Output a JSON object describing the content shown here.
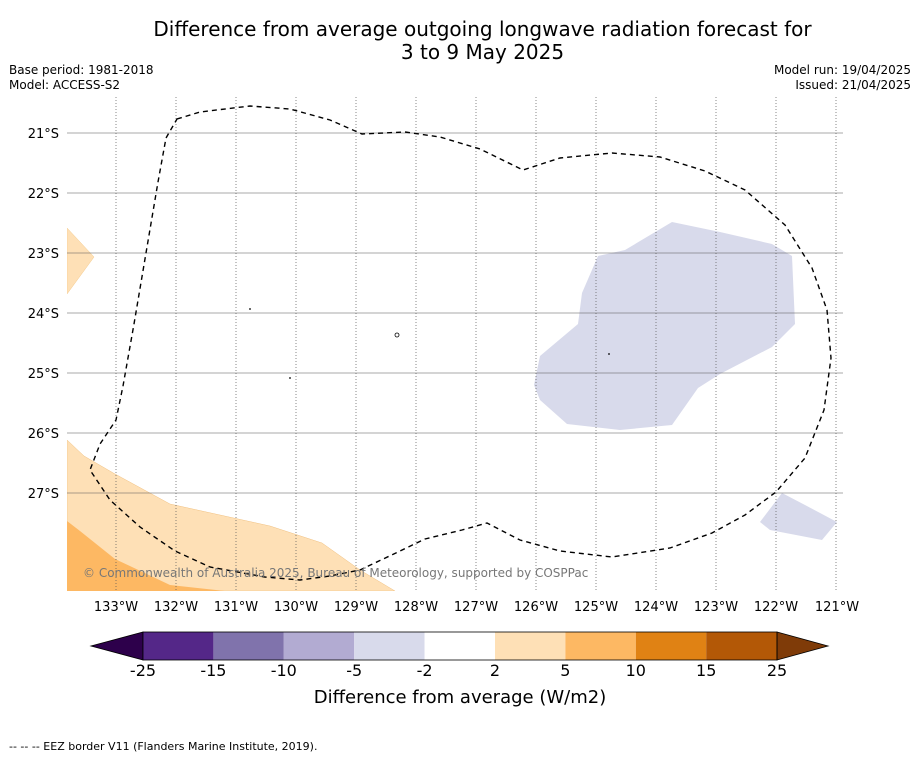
{
  "title_line1": "Difference from average outgoing longwave radiation forecast for",
  "title_line2": "3 to 9 May 2025",
  "base_period": "Base period: 1981-2018",
  "model": "Model: ACCESS-S2",
  "model_run": "Model run: 19/04/2025",
  "issued": "Issued: 21/04/2025",
  "copyright": "© Commonwealth of Australia 2025, Bureau of Meteorology, supported by COSPPac",
  "footer_note": "--  --  -- EEZ border V11 (Flanders Marine Institute, 2019).",
  "map": {
    "lon_labels": [
      "133°W",
      "132°W",
      "131°W",
      "130°W",
      "129°W",
      "128°W",
      "127°W",
      "126°W",
      "125°W",
      "124°W",
      "123°W",
      "122°W",
      "121°W"
    ],
    "lat_labels": [
      "21°S",
      "22°S",
      "23°S",
      "24°S",
      "25°S",
      "26°S",
      "27°S"
    ]
  },
  "colorbar": {
    "label": "Difference from average (W/m2)",
    "ticks": [
      "-25",
      "-15",
      "-10",
      "-5",
      "-2",
      "2",
      "5",
      "10",
      "15",
      "25"
    ],
    "colors": {
      "below": "#2d004b",
      "bins": [
        "#542788",
        "#8073ac",
        "#b2abd2",
        "#d8daeb",
        "#ffffff",
        "#fee0b6",
        "#fdb863",
        "#e08214",
        "#b35806"
      ],
      "above": "#7f3b08"
    }
  }
}
